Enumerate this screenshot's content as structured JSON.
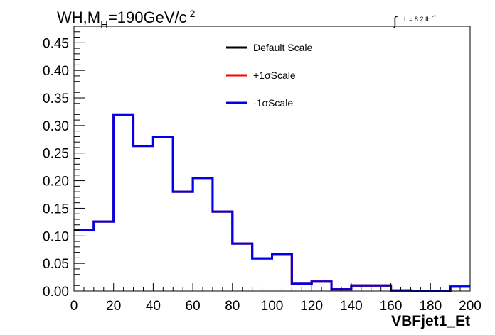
{
  "chart_data": {
    "type": "line",
    "title": {
      "main": "WH,M",
      "sub": "H",
      "rest": "=190GeV/c",
      "sup": "2"
    },
    "lumi": {
      "text": "L = 8.2 fb",
      "sup": "-1"
    },
    "xlabel": "VBFjet1_Et",
    "ylabel": "",
    "xlim": [
      0,
      200
    ],
    "ylim": [
      0,
      0.48
    ],
    "x_ticks": [
      "0",
      "20",
      "40",
      "60",
      "80",
      "100",
      "120",
      "140",
      "160",
      "180",
      "200"
    ],
    "y_ticks": [
      "0.00",
      "0.05",
      "0.10",
      "0.15",
      "0.20",
      "0.25",
      "0.30",
      "0.35",
      "0.40",
      "0.45"
    ],
    "bin_edges": [
      0,
      10,
      20,
      30,
      40,
      50,
      60,
      70,
      80,
      90,
      100,
      110,
      120,
      130,
      140,
      150,
      160,
      170,
      180,
      190,
      200
    ],
    "series": [
      {
        "name": "Default Scale",
        "color": "#000000",
        "values": [
          0.111,
          0.126,
          0.32,
          0.263,
          0.279,
          0.18,
          0.205,
          0.144,
          0.086,
          0.059,
          0.067,
          0.013,
          0.017,
          0.003,
          0.01,
          0.01,
          0.001,
          0.0,
          0.0,
          0.008
        ]
      },
      {
        "name": "+1σScale",
        "color": "#ff0000",
        "values": [
          0.111,
          0.126,
          0.32,
          0.263,
          0.279,
          0.18,
          0.205,
          0.144,
          0.086,
          0.059,
          0.067,
          0.013,
          0.017,
          0.003,
          0.01,
          0.01,
          0.001,
          0.0,
          0.0,
          0.008
        ]
      },
      {
        "name": "-1σScale",
        "color": "#0000ee",
        "values": [
          0.111,
          0.126,
          0.32,
          0.263,
          0.279,
          0.18,
          0.205,
          0.144,
          0.086,
          0.059,
          0.067,
          0.013,
          0.017,
          0.003,
          0.01,
          0.01,
          0.001,
          0.0,
          0.0,
          0.008
        ]
      }
    ],
    "legend_position": "top-center",
    "grid": false
  }
}
